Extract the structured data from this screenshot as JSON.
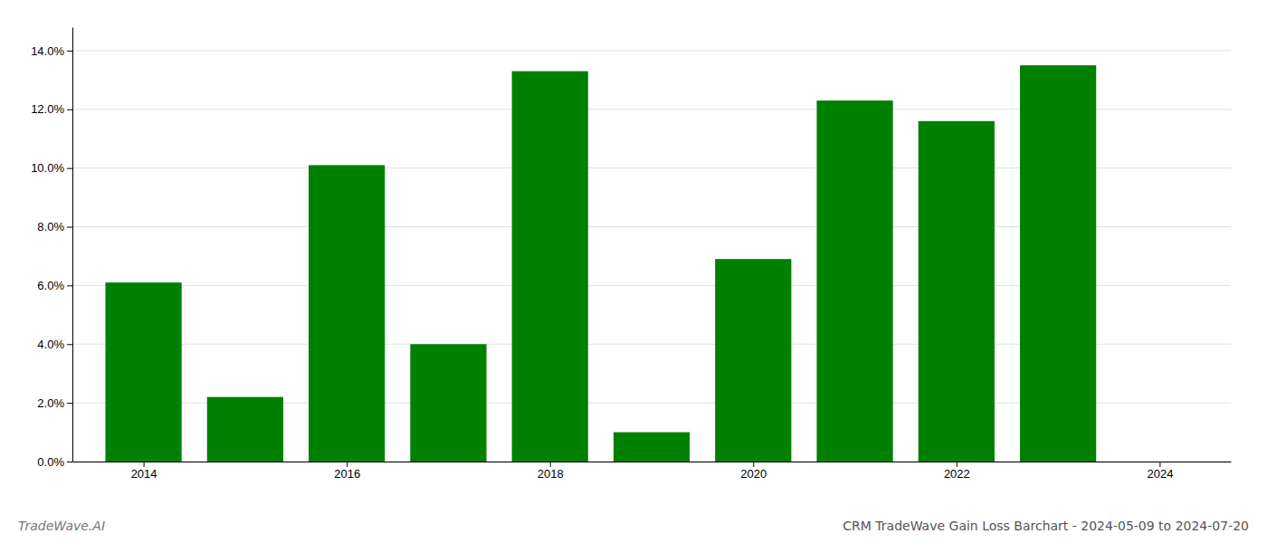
{
  "chart_data": {
    "type": "bar",
    "title": "CRM TradeWave Gain Loss Barchart - 2024-05-09 to 2024-07-20",
    "annotations": [
      "TradeWave.AI"
    ],
    "x": [
      2014,
      2015,
      2016,
      2017,
      2018,
      2019,
      2020,
      2021,
      2022,
      2023
    ],
    "values": [
      0.061,
      0.022,
      0.101,
      0.04,
      0.133,
      0.01,
      0.069,
      0.123,
      0.116,
      0.135
    ],
    "color": "#008000",
    "xlim": [
      2013.3,
      2024.7
    ],
    "xticks": [
      2014,
      2016,
      2018,
      2020,
      2022,
      2024
    ],
    "ylim": [
      0,
      0.148
    ],
    "yticks": [
      {
        "value": 0.0,
        "label": "0.0%"
      },
      {
        "value": 0.02,
        "label": "2.0%"
      },
      {
        "value": 0.04,
        "label": "4.0%"
      },
      {
        "value": 0.06,
        "label": "6.0%"
      },
      {
        "value": 0.08,
        "label": "8.0%"
      },
      {
        "value": 0.1,
        "label": "10.0%"
      },
      {
        "value": 0.12,
        "label": "12.0%"
      },
      {
        "value": 0.14,
        "label": "14.0%"
      }
    ],
    "grid": true
  }
}
